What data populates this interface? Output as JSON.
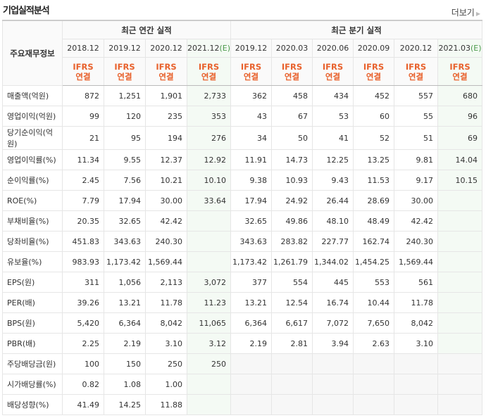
{
  "title": "기업실적분석",
  "more_label": "더보기",
  "header": {
    "lead": "주요재무정보",
    "annual_group": "최근 연간 실적",
    "quarter_group": "최근 분기 실적",
    "periods": [
      "2018.12",
      "2019.12",
      "2020.12",
      "2021.12",
      "2019.12",
      "2020.03",
      "2020.06",
      "2020.09",
      "2020.12",
      "2021.03"
    ],
    "estimate_cols": [
      3,
      9
    ],
    "estimate_mark": "(E)",
    "basis_line1": "IFRS",
    "basis_line2": "연결"
  },
  "rows": [
    {
      "label": "매출액(억원)",
      "values": [
        "872",
        "1,251",
        "1,901",
        "2,733",
        "362",
        "458",
        "434",
        "452",
        "557",
        "680"
      ]
    },
    {
      "label": "영업이익(억원)",
      "values": [
        "99",
        "120",
        "235",
        "353",
        "43",
        "67",
        "53",
        "60",
        "55",
        "96"
      ]
    },
    {
      "label": "당기순이익(억원)",
      "values": [
        "21",
        "95",
        "194",
        "276",
        "34",
        "50",
        "41",
        "52",
        "51",
        "69"
      ]
    },
    {
      "label": "영업이익률(%)",
      "values": [
        "11.34",
        "9.55",
        "12.37",
        "12.92",
        "11.91",
        "14.73",
        "12.25",
        "13.25",
        "9.81",
        "14.04"
      ]
    },
    {
      "label": "순이익률(%)",
      "values": [
        "2.45",
        "7.56",
        "10.21",
        "10.10",
        "9.38",
        "10.93",
        "9.43",
        "11.53",
        "9.17",
        "10.15"
      ]
    },
    {
      "label": "ROE(%)",
      "values": [
        "7.79",
        "17.94",
        "30.00",
        "33.64",
        "17.94",
        "24.92",
        "26.44",
        "28.69",
        "30.00",
        null
      ]
    },
    {
      "label": "부채비율(%)",
      "values": [
        "20.35",
        "32.65",
        "42.42",
        null,
        "32.65",
        "49.86",
        "48.10",
        "48.49",
        "42.42",
        null
      ]
    },
    {
      "label": "당좌비율(%)",
      "values": [
        "451.83",
        "343.63",
        "240.30",
        null,
        "343.63",
        "283.82",
        "227.77",
        "162.74",
        "240.30",
        null
      ]
    },
    {
      "label": "유보율(%)",
      "values": [
        "983.93",
        "1,173.42",
        "1,569.44",
        null,
        "1,173.42",
        "1,261.79",
        "1,344.02",
        "1,454.25",
        "1,569.44",
        null
      ]
    },
    {
      "label": "EPS(원)",
      "values": [
        "311",
        "1,056",
        "2,113",
        "3,072",
        "377",
        "554",
        "445",
        "553",
        "561",
        null
      ]
    },
    {
      "label": "PER(배)",
      "values": [
        "39.26",
        "13.21",
        "11.78",
        "11.23",
        "13.21",
        "12.54",
        "16.74",
        "10.44",
        "11.78",
        null
      ]
    },
    {
      "label": "BPS(원)",
      "values": [
        "5,420",
        "6,364",
        "8,042",
        "11,065",
        "6,364",
        "6,617",
        "7,072",
        "7,650",
        "8,042",
        null
      ]
    },
    {
      "label": "PBR(배)",
      "values": [
        "2.25",
        "2.19",
        "3.10",
        "3.12",
        "2.19",
        "2.81",
        "3.94",
        "2.63",
        "3.10",
        null
      ]
    },
    {
      "label": "주당배당금(원)",
      "values": [
        "100",
        "150",
        "250",
        "250",
        null,
        null,
        null,
        null,
        null,
        null
      ],
      "quarter_na": true
    },
    {
      "label": "시가배당률(%)",
      "values": [
        "0.82",
        "1.08",
        "1.00",
        null,
        null,
        null,
        null,
        null,
        null,
        null
      ],
      "quarter_na": true
    },
    {
      "label": "배당성향(%)",
      "values": [
        "41.49",
        "14.25",
        "11.88",
        null,
        null,
        null,
        null,
        null,
        null,
        null
      ],
      "quarter_na": true
    }
  ],
  "group_breaks": [
    3,
    6,
    9,
    13
  ],
  "colors": {
    "basis": "#e8612c",
    "estimate_bg": "#f4faf4",
    "estimate_mark": "#4a9a4a"
  }
}
